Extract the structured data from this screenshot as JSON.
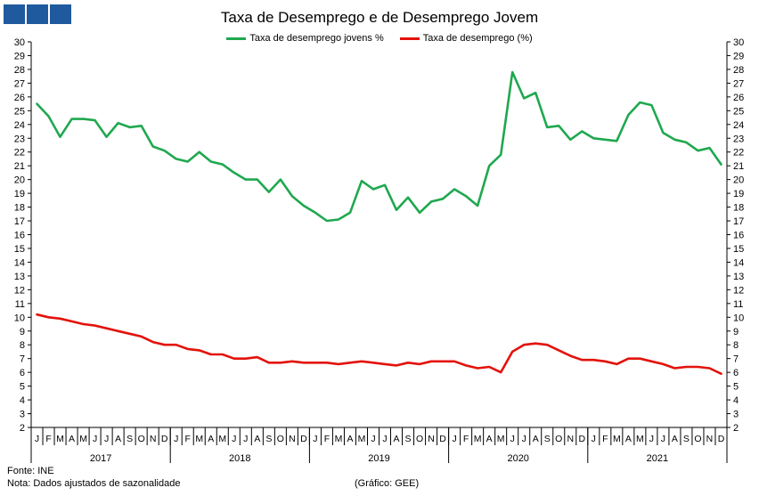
{
  "chart_data": {
    "type": "line",
    "title": "Taxa de Desemprego e de Desemprego Jovem",
    "xlabel": "",
    "ylabel": "",
    "ylim": [
      2,
      30
    ],
    "yticks": [
      2,
      3,
      4,
      5,
      6,
      7,
      8,
      9,
      10,
      11,
      12,
      13,
      14,
      15,
      16,
      17,
      18,
      19,
      20,
      21,
      22,
      23,
      24,
      25,
      26,
      27,
      28,
      29,
      30
    ],
    "legend_position": "top-center",
    "grid": false,
    "x_month_labels": [
      "J",
      "F",
      "M",
      "A",
      "M",
      "J",
      "J",
      "A",
      "S",
      "O",
      "N",
      "D"
    ],
    "years": [
      "2017",
      "2018",
      "2019",
      "2020",
      "2021"
    ],
    "series": [
      {
        "name": "Taxa de desemprego jovens %",
        "color": "#1fa84f",
        "values": [
          25.5,
          24.6,
          23.1,
          24.4,
          24.4,
          24.3,
          23.1,
          24.1,
          23.8,
          23.9,
          22.4,
          22.1,
          21.5,
          21.3,
          22.0,
          21.3,
          21.1,
          20.5,
          20.0,
          20.0,
          19.1,
          20.0,
          18.8,
          18.1,
          17.6,
          17.0,
          17.1,
          17.6,
          19.9,
          19.3,
          19.6,
          17.8,
          18.7,
          17.6,
          18.4,
          18.6,
          19.3,
          18.8,
          18.1,
          21.0,
          21.8,
          27.8,
          25.9,
          26.3,
          23.8,
          23.9,
          22.9,
          23.5,
          23.0,
          22.9,
          22.8,
          24.7,
          25.6,
          25.4,
          23.4,
          22.9,
          22.7,
          22.1,
          22.3,
          21.1
        ]
      },
      {
        "name": "Taxa de desemprego (%)",
        "color": "#e3120b",
        "values": [
          10.2,
          10.0,
          9.9,
          9.7,
          9.5,
          9.4,
          9.2,
          9.0,
          8.8,
          8.6,
          8.2,
          8.0,
          8.0,
          7.7,
          7.6,
          7.3,
          7.3,
          7.0,
          7.0,
          7.1,
          6.7,
          6.7,
          6.8,
          6.7,
          6.7,
          6.7,
          6.6,
          6.7,
          6.8,
          6.7,
          6.6,
          6.5,
          6.7,
          6.6,
          6.8,
          6.8,
          6.8,
          6.5,
          6.3,
          6.4,
          6.0,
          7.5,
          8.0,
          8.1,
          8.0,
          7.6,
          7.2,
          6.9,
          6.9,
          6.8,
          6.6,
          7.0,
          7.0,
          6.8,
          6.6,
          6.3,
          6.4,
          6.4,
          6.3,
          5.9
        ]
      }
    ]
  },
  "footer": {
    "source": "Fonte: INE",
    "note": "Nota: Dados ajustados de sazonalidade",
    "credit": "(Gráfico: GEE)"
  }
}
